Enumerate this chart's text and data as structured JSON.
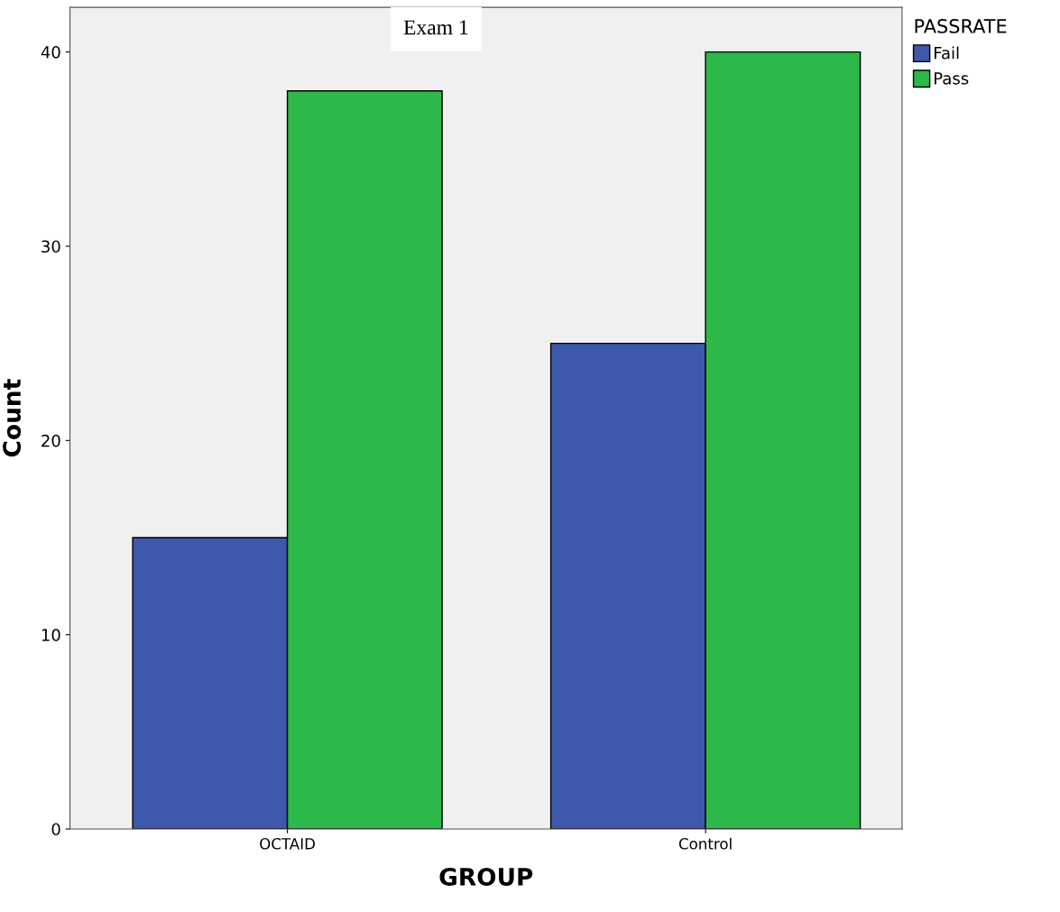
{
  "chart_data": {
    "type": "bar",
    "title": "Exam 1",
    "xlabel": "GROUP",
    "ylabel": "Count",
    "legend_title": "PASSRATE",
    "categories": [
      "OCTAID",
      "Control"
    ],
    "series": [
      {
        "name": "Fail",
        "color": "#3e58ac",
        "values": [
          15,
          25
        ]
      },
      {
        "name": "Pass",
        "color": "#2db84a",
        "values": [
          38,
          40
        ]
      }
    ],
    "ylim": [
      0,
      42.3
    ],
    "yticks": [
      0,
      10,
      20,
      30,
      40
    ],
    "grid": false,
    "legend": "top right"
  }
}
